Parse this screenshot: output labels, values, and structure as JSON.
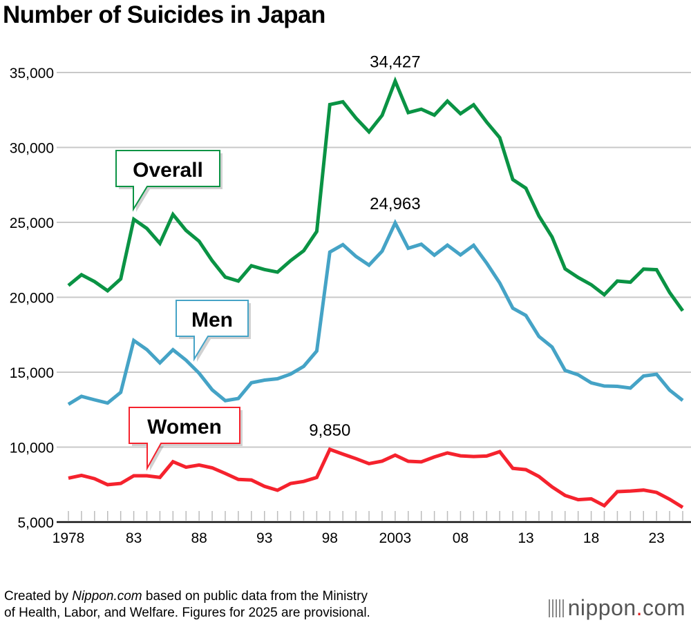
{
  "title": "Number of Suicides in Japan",
  "chart_data": {
    "type": "line",
    "title": "Number of Suicides in Japan",
    "xlabel": "",
    "ylabel": "",
    "ylim": [
      5000,
      35000
    ],
    "yticks": [
      5000,
      10000,
      15000,
      20000,
      25000,
      30000,
      35000
    ],
    "ytick_labels": [
      "5,000",
      "10,000",
      "15,000",
      "20,000",
      "25,000",
      "30,000",
      "35,000"
    ],
    "xticks": [
      1978,
      1983,
      1988,
      1993,
      1998,
      2003,
      2008,
      2013,
      2018,
      2023
    ],
    "xtick_labels": [
      "1978",
      "83",
      "88",
      "93",
      "98",
      "2003",
      "08",
      "13",
      "18",
      "23"
    ],
    "grid": true,
    "x": [
      1978,
      1979,
      1980,
      1981,
      1982,
      1983,
      1984,
      1985,
      1986,
      1987,
      1988,
      1989,
      1990,
      1991,
      1992,
      1993,
      1994,
      1995,
      1996,
      1997,
      1998,
      1999,
      2000,
      2001,
      2002,
      2003,
      2004,
      2005,
      2006,
      2007,
      2008,
      2009,
      2010,
      2011,
      2012,
      2013,
      2014,
      2015,
      2016,
      2017,
      2018,
      2019,
      2020,
      2021,
      2022,
      2023,
      2024,
      2025
    ],
    "series": [
      {
        "name": "Overall",
        "color": "#0a9344",
        "values": [
          20788,
          21503,
          21048,
          20434,
          21228,
          25202,
          24596,
          23599,
          25524,
          24460,
          23742,
          22436,
          21346,
          21084,
          22104,
          21851,
          21679,
          22445,
          23104,
          24391,
          32863,
          33048,
          31957,
          31042,
          32143,
          34427,
          32325,
          32552,
          32155,
          33093,
          32249,
          32845,
          31690,
          30651,
          27858,
          27283,
          25427,
          24025,
          21897,
          21321,
          20840,
          20169,
          21081,
          21007,
          21881,
          21837,
          20320,
          19097
        ]
      },
      {
        "name": "Men",
        "color": "#45a3c6",
        "values": [
          12859,
          13386,
          13155,
          12942,
          13654,
          17116,
          16508,
          15624,
          16497,
          15802,
          14934,
          13818,
          13102,
          13242,
          14296,
          14468,
          14560,
          14874,
          15393,
          16416,
          23013,
          23512,
          22727,
          22144,
          23080,
          24963,
          23272,
          23540,
          22813,
          23478,
          22831,
          23472,
          22283,
          20955,
          19273,
          18787,
          17386,
          16681,
          15121,
          14826,
          14290,
          14078,
          14055,
          13939,
          14746,
          14862,
          13801,
          13117
        ]
      },
      {
        "name": "Women",
        "color": "#f5222d",
        "values": [
          7929,
          8117,
          7893,
          7492,
          7574,
          8086,
          8088,
          7975,
          9027,
          8658,
          8808,
          8618,
          8244,
          7842,
          7808,
          7383,
          7119,
          7571,
          7711,
          7975,
          9850,
          9536,
          9230,
          8898,
          9063,
          9464,
          9053,
          9012,
          9342,
          9615,
          9418,
          9373,
          9407,
          9696,
          8585,
          8496,
          8041,
          7344,
          6776,
          6495,
          6550,
          6091,
          7026,
          7068,
          7135,
          6975,
          6519,
          5980
        ]
      }
    ],
    "annotations": [
      {
        "text": "34,427",
        "x": 2003,
        "y": 34427
      },
      {
        "text": "24,963",
        "x": 2003,
        "y": 24963
      },
      {
        "text": "9,850",
        "x": 1998,
        "y": 9850
      }
    ],
    "legend_callouts": [
      "Overall",
      "Men",
      "Women"
    ]
  },
  "footer": {
    "pre": "Created by ",
    "source": "Nippon.com",
    "post": " based on public data from the Ministry",
    "line2": "of Health, Labor, and Welfare. Figures for 2025 are provisional."
  },
  "logo": {
    "name": "nippon",
    "dot": ".",
    "tld": "com"
  }
}
